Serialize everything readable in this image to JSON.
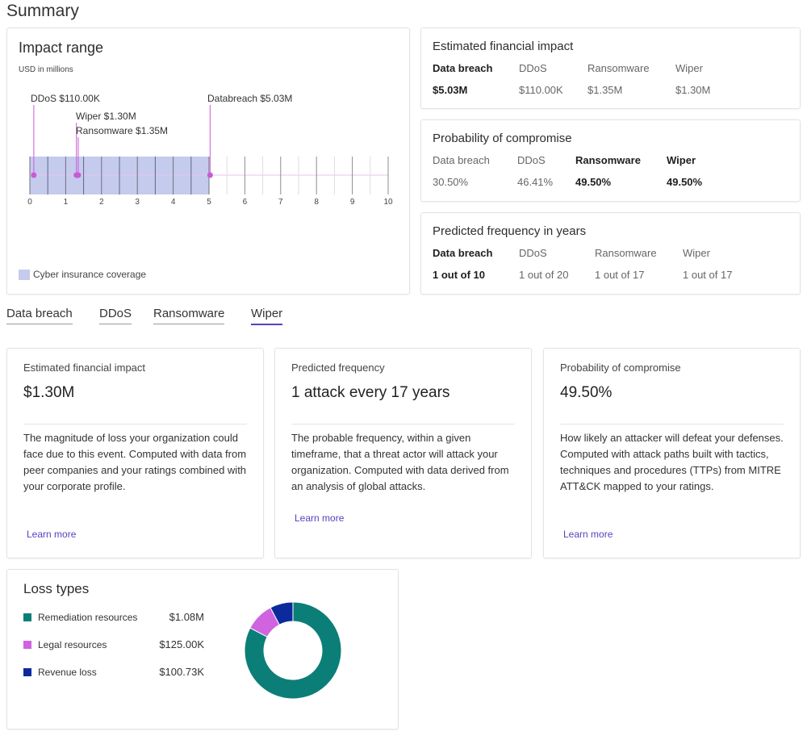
{
  "page": {
    "title": "Summary"
  },
  "impact_range": {
    "title": "Impact range",
    "units": "USD in millions",
    "axis": {
      "min": 0,
      "max": 10,
      "ticks": [
        "0",
        "1",
        "2",
        "3",
        "4",
        "5",
        "6",
        "7",
        "8",
        "9",
        "10"
      ]
    },
    "coverage_max": 5,
    "markers": [
      {
        "label": "DDoS $110.00K",
        "value": 0.11
      },
      {
        "label": "Wiper $1.30M",
        "value": 1.3
      },
      {
        "label": "Ransomware $1.35M",
        "value": 1.35
      },
      {
        "label": "Databreach $5.03M",
        "value": 5.03
      }
    ],
    "legend": "Cyber insurance coverage",
    "colors": {
      "coverage": "#c5cbec",
      "marker": "#c95ad8",
      "line": "#8a8a8a"
    }
  },
  "financial": {
    "title": "Estimated financial impact",
    "columns": [
      {
        "label": "Data breach",
        "value": "$5.03M",
        "bold": true
      },
      {
        "label": "DDoS",
        "value": "$110.00K",
        "bold": false
      },
      {
        "label": "Ransomware",
        "value": "$1.35M",
        "bold": false
      },
      {
        "label": "Wiper",
        "value": "$1.30M",
        "bold": false
      }
    ]
  },
  "probability": {
    "title": "Probability of compromise",
    "columns": [
      {
        "label": "Data breach",
        "value": "30.50%",
        "bold": false
      },
      {
        "label": "DDoS",
        "value": "46.41%",
        "bold": false
      },
      {
        "label": "Ransomware",
        "value": "49.50%",
        "bold": true
      },
      {
        "label": "Wiper",
        "value": "49.50%",
        "bold": true
      }
    ]
  },
  "frequency": {
    "title": "Predicted frequency in years",
    "columns": [
      {
        "label": "Data breach",
        "value": "1 out of 10",
        "bold": true
      },
      {
        "label": "DDoS",
        "value": "1 out of 20",
        "bold": false
      },
      {
        "label": "Ransomware",
        "value": "1 out of 17",
        "bold": false
      },
      {
        "label": "Wiper",
        "value": "1 out of 17",
        "bold": false
      }
    ]
  },
  "tabs": [
    {
      "label": "Data breach",
      "active": false
    },
    {
      "label": "DDoS",
      "active": false
    },
    {
      "label": "Ransomware",
      "active": false
    },
    {
      "label": "Wiper",
      "active": true
    }
  ],
  "metrics": [
    {
      "label": "Estimated financial impact",
      "value": "$1.30M",
      "description": "The magnitude of loss your organization could face due to this event. Computed with data from peer companies and your ratings combined with your corporate profile.",
      "link": "Learn more"
    },
    {
      "label": "Predicted frequency",
      "value": "1 attack every 17 years",
      "description": "The probable frequency, within a given timeframe, that a threat actor will attack your organization. Computed with data derived from an analysis of global attacks.",
      "link": "Learn more"
    },
    {
      "label": "Probability of compromise",
      "value": "49.50%",
      "description": "How likely an attacker will defeat your defenses. Computed with attack paths built with tactics, techniques and procedures (TTPs) from MITRE ATT&CK mapped to your ratings.",
      "link": "Learn more"
    }
  ],
  "loss_types": {
    "title": "Loss types",
    "items": [
      {
        "name": "Remediation resources",
        "value": "$1.08M",
        "amount": 1.08,
        "color": "#0b7f77"
      },
      {
        "name": "Legal resources",
        "value": "$125.00K",
        "amount": 0.125,
        "color": "#cf63e0"
      },
      {
        "name": "Revenue loss",
        "value": "$100.73K",
        "amount": 0.10073,
        "color": "#0d2a9c"
      }
    ]
  }
}
